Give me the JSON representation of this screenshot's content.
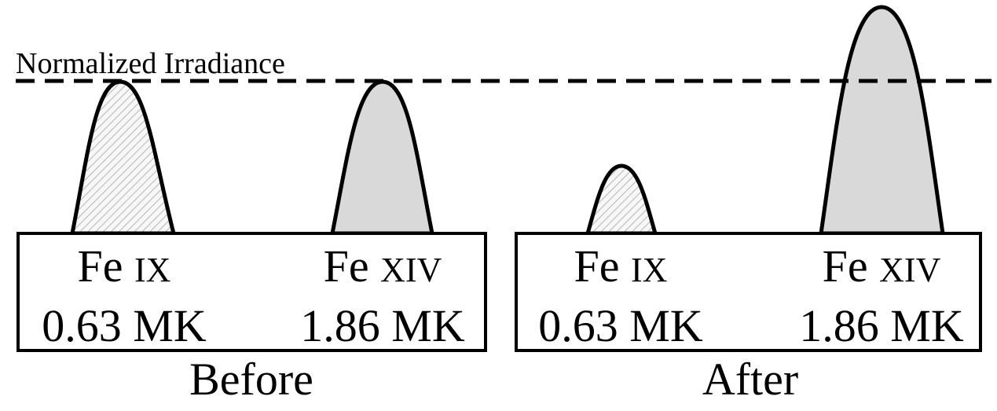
{
  "reference_line": {
    "label": "Normalized Irradiance",
    "level": 1.0
  },
  "panels": [
    {
      "caption": "Before",
      "peaks": [
        {
          "element": "Fe",
          "ion": "IX",
          "temperature": "0.63 MK",
          "relative_height": 1.0,
          "fill": "hatched"
        },
        {
          "element": "Fe",
          "ion": "XIV",
          "temperature": "1.86 MK",
          "relative_height": 1.0,
          "fill": "gray"
        }
      ]
    },
    {
      "caption": "After",
      "peaks": [
        {
          "element": "Fe",
          "ion": "IX",
          "temperature": "0.63 MK",
          "relative_height": 0.45,
          "fill": "hatched"
        },
        {
          "element": "Fe",
          "ion": "XIV",
          "temperature": "1.86 MK",
          "relative_height": 1.48,
          "fill": "gray"
        }
      ]
    }
  ],
  "colors": {
    "stroke": "#000000",
    "gray_fill": "#d9d9d9",
    "hatch_line": "#b5b5b5",
    "background": "#ffffff"
  }
}
